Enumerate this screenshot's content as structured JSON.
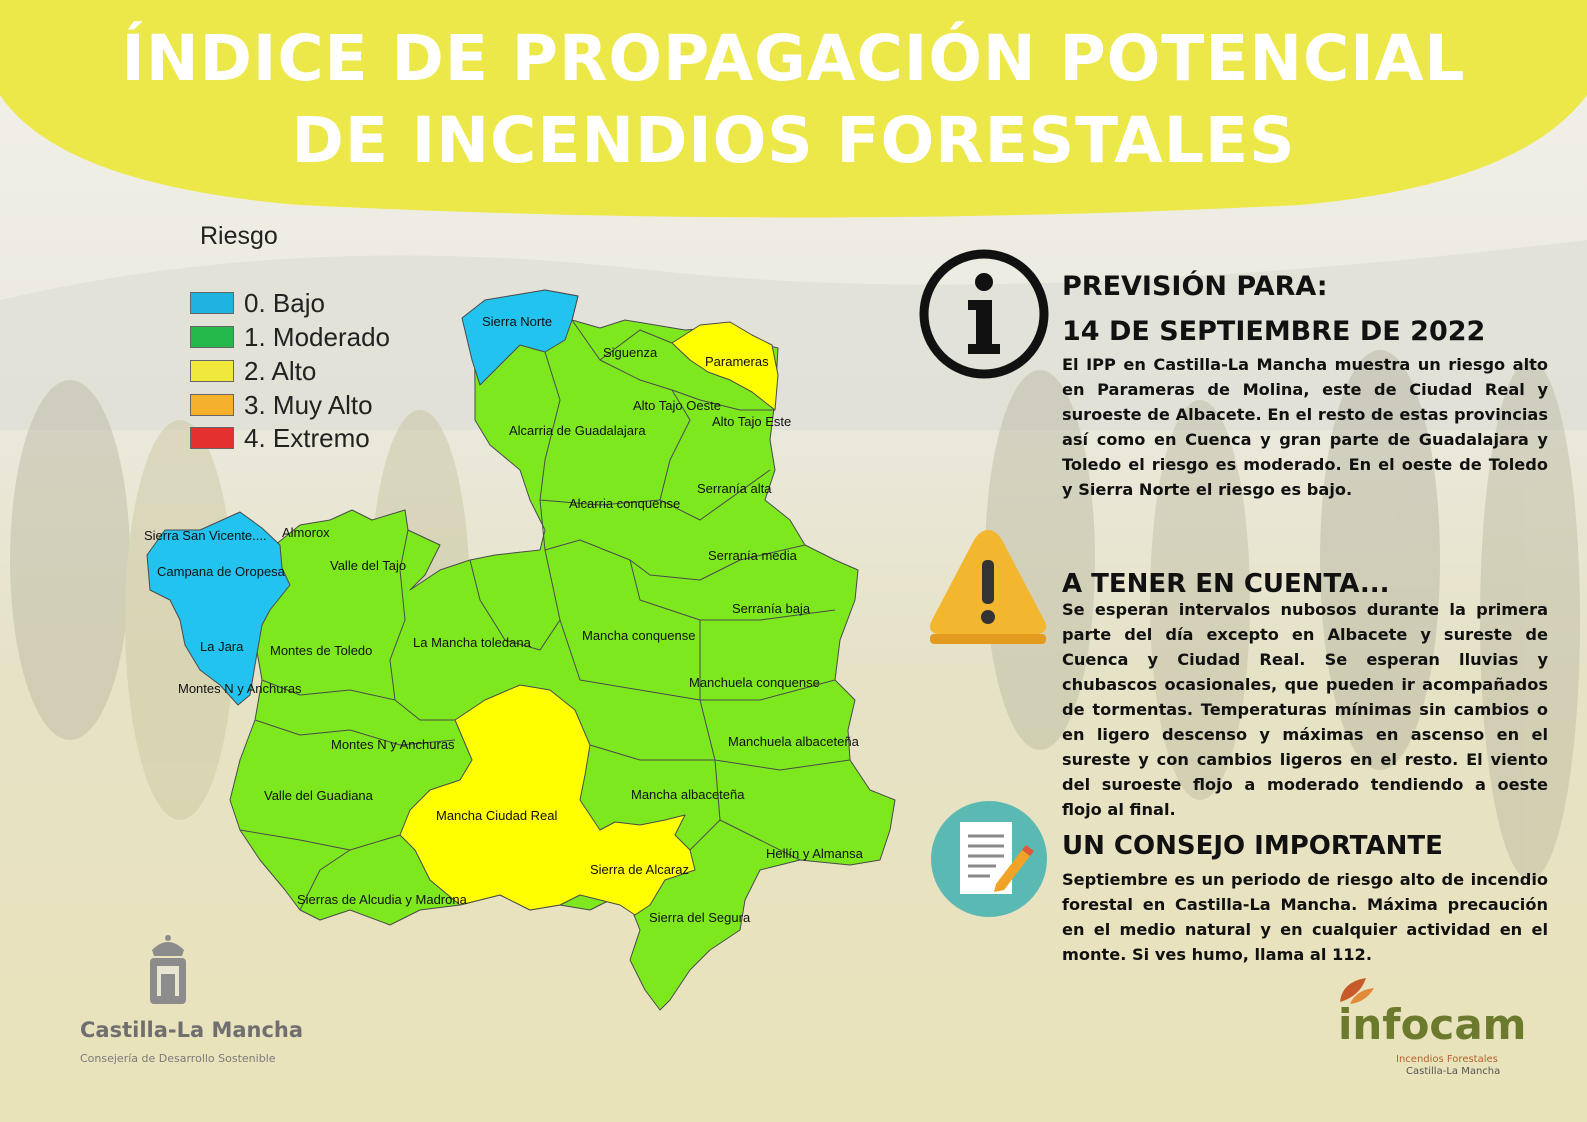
{
  "title": {
    "line1": "ÍNDICE DE PROPAGACIÓN POTENCIAL",
    "line2": "DE INCENDIOS FORESTALES"
  },
  "colors": {
    "banner": "#ede84a",
    "bajo": "#1fb4e0",
    "moderado": "#25b84a",
    "alto": "#f0e83a",
    "muy_alto": "#f5b12c",
    "extremo": "#e53030",
    "map_green": "#7ee81f",
    "map_blue": "#22c3ee",
    "map_yellow": "#ffff00"
  },
  "legend": {
    "title": "Riesgo",
    "items": [
      {
        "label": "0. Bajo",
        "color": "#1fb4e0"
      },
      {
        "label": "1. Moderado",
        "color": "#25b84a"
      },
      {
        "label": "2. Alto",
        "color": "#f0e83a"
      },
      {
        "label": "3. Muy Alto",
        "color": "#f5b12c"
      },
      {
        "label": "4. Extremo",
        "color": "#e53030"
      }
    ]
  },
  "map_regions": {
    "sierra_norte": "Sierra Norte",
    "siguenza": "Siguenza",
    "parameras": "Parameras",
    "alto_tajo_oeste": "Alto Tajo Oeste",
    "alto_tajo_este": "Alto Tajo Este",
    "alcarria_guadalajara": "Alcarria de Guadalajara",
    "serrania_alta": "Serranía alta",
    "alcarria_conquense": "Alcarria conquense",
    "sierra_san_vicente": "Sierra San Vicente....",
    "almorox": "Almorox",
    "serrania_media": "Serranía media",
    "campana_oropesa": "Campana de Oropesa",
    "valle_tajo": "Valle del Tajo",
    "serrania_baja": "Serranía baja",
    "mancha_conquense": "Mancha conquense",
    "la_jara": "La Jara",
    "la_mancha_toledana": "La Mancha toledana",
    "montes_toledo": "Montes de Toledo",
    "montes_n_anchuras_1": "Montes N y Anchuras",
    "manchuela_conquense": "Manchuela conquense",
    "manchuela_albacetena": "Manchuela albaceteña",
    "montes_n_anchuras_2": "Montes N y Anchuras",
    "valle_guadiana": "Valle del Guadiana",
    "mancha_albacetena": "Mancha albaceteña",
    "mancha_ciudad_real": "Mancha Ciudad Real",
    "hellin_almansa": "Hellín y Almansa",
    "sierra_alcaraz": "Sierra de Alcaraz",
    "sierras_alcudia": "Sierras de Alcudia y Madrona",
    "sierra_segura": "Sierra del Segura"
  },
  "prevision": {
    "heading": "PREVISIÓN PARA:",
    "date": "14 DE SEPTIEMBRE DE 2022",
    "text": "El IPP en Castilla-La Mancha muestra un riesgo alto en Parameras de Molina, este de Ciudad Real y suroeste de Albacete. En el resto de estas provincias así como en Cuenca y gran parte de Guadalajara y Toledo el riesgo es moderado. En el oeste de Toledo y Sierra Norte el riesgo es bajo."
  },
  "tener_en_cuenta": {
    "heading": "A TENER EN CUENTA...",
    "text": "Se esperan intervalos nubosos durante la primera parte del día excepto en Albacete y sureste de Cuenca y Ciudad Real. Se esperan lluvias y chubascos ocasionales, que pueden ir acompañados de tormentas. Temperaturas mínimas sin cambios o en ligero descenso y máximas en ascenso en el sureste y con cambios ligeros en el resto. El viento del suroeste flojo a moderado tendiendo a oeste flojo al final."
  },
  "consejo": {
    "heading": "UN CONSEJO IMPORTANTE",
    "text": "Septiembre es un periodo de riesgo alto de incendio forestal en Castilla-La Mancha. Máxima precaución en el medio natural y en cualquier actividad en el monte. Si ves humo, llama al 112."
  },
  "logos": {
    "clm_name": "Castilla-La Mancha",
    "clm_sub": "Consejería de Desarrollo Sostenible",
    "infocam_name": "infocam",
    "infocam_sub1": "Incendios Forestales",
    "infocam_sub2": "Castilla-La Mancha"
  },
  "icons": {
    "info": "info-icon",
    "warning": "warning-icon",
    "document": "document-icon",
    "coat_of_arms": "coat-of-arms-icon",
    "infocam_leaf": "leaf-icon"
  }
}
